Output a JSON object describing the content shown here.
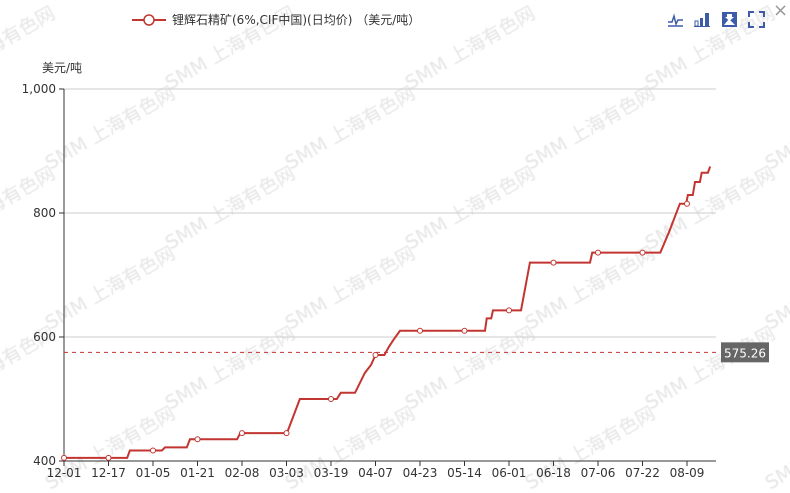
{
  "legend": {
    "label": "锂辉石精矿(6%,CIF中国)(日均价) （美元/吨）"
  },
  "toolbar": {
    "icons": [
      "line-chart-icon",
      "bar-chart-icon",
      "save-image-icon",
      "fullscreen-icon"
    ]
  },
  "close_icon": "×",
  "watermark": "SMM 上海有色网",
  "colors": {
    "series": "#c23531",
    "reference": "#c23531",
    "label_bg": "#666666"
  },
  "chart_data": {
    "type": "line",
    "ylabel": "美元/吨",
    "ylim": [
      400,
      1000
    ],
    "yticks": [
      400,
      600,
      800,
      "1,000"
    ],
    "grid": true,
    "legend_position": "top",
    "xtick_labels": [
      "12-01",
      "12-17",
      "01-05",
      "01-21",
      "02-08",
      "03-03",
      "03-19",
      "04-07",
      "04-23",
      "05-14",
      "06-01",
      "06-18",
      "07-06",
      "07-22",
      "08-09"
    ],
    "xtick_step": 10,
    "series": [
      {
        "name": "锂辉石精矿(6%,CIF中国)(日均价) （美元/吨）",
        "points": [
          [
            0,
            405
          ],
          [
            14.2,
            405
          ],
          [
            14.8,
            417
          ],
          [
            22,
            417
          ],
          [
            22.7,
            422
          ],
          [
            27.6,
            422
          ],
          [
            28.3,
            435
          ],
          [
            38.9,
            435
          ],
          [
            39.6,
            445
          ],
          [
            50.1,
            445
          ],
          [
            53,
            500
          ],
          [
            61.3,
            500
          ],
          [
            62.2,
            510
          ],
          [
            65.4,
            510
          ],
          [
            67.6,
            542
          ],
          [
            69,
            555
          ],
          [
            70,
            571
          ],
          [
            72,
            571
          ],
          [
            73,
            584
          ],
          [
            74,
            595
          ],
          [
            75.5,
            610
          ],
          [
            94.6,
            610
          ],
          [
            95,
            630
          ],
          [
            96,
            630
          ],
          [
            96.4,
            643
          ],
          [
            102.7,
            643
          ],
          [
            104.7,
            720
          ],
          [
            118.2,
            720
          ],
          [
            118.7,
            736
          ],
          [
            134,
            736
          ],
          [
            136,
            770
          ],
          [
            138.4,
            815
          ],
          [
            139.8,
            815
          ],
          [
            140.2,
            829
          ],
          [
            141.3,
            829
          ],
          [
            141.8,
            850
          ],
          [
            142.9,
            850
          ],
          [
            143.3,
            865
          ],
          [
            144.7,
            865
          ],
          [
            145.2,
            875
          ]
        ]
      }
    ],
    "reference_line": {
      "value": 575.26,
      "label": "575.26",
      "style": "dashed"
    }
  }
}
